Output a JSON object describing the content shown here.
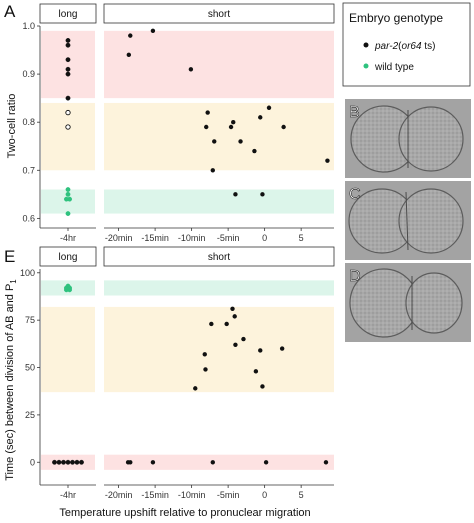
{
  "figure": {
    "panel_a_letter": "A",
    "panel_e_letter": "E",
    "x_axis_title": "Temperature upshift relative to pronuclear migration",
    "colors": {
      "par2": "#111111",
      "wildtype": "#2ec27e",
      "band_red": "#fde2e2",
      "band_yellow": "#fdf3dc",
      "band_green": "#dcf5ea"
    }
  },
  "legend": {
    "title": "Embryo genotype",
    "items": [
      {
        "pre": "par-2",
        "mid": "(",
        "allele": "or64",
        "post": " ts)",
        "color": "#111111"
      },
      {
        "pre": "wild type",
        "mid": "",
        "allele": "",
        "post": "",
        "color": "#2ec27e"
      }
    ]
  },
  "micrographs": [
    {
      "letter": "B",
      "icon": "two-cell-embryo-image"
    },
    {
      "letter": "C",
      "icon": "two-cell-embryo-image"
    },
    {
      "letter": "D",
      "icon": "two-cell-embryo-image"
    }
  ],
  "chart_data": [
    {
      "type": "scatter",
      "panel": "A",
      "ylabel": "Two-cell ratio",
      "ylim": [
        0.58,
        1.0
      ],
      "yticks": [
        0.6,
        0.7,
        0.8,
        0.9,
        1.0
      ],
      "ytick_labels": [
        "0.6",
        "0.7",
        "0.8",
        "0.9",
        "1.0"
      ],
      "bands": [
        {
          "from": 0.85,
          "to": 0.99,
          "color": "#fde2e2"
        },
        {
          "from": 0.7,
          "to": 0.84,
          "color": "#fdf3dc"
        },
        {
          "from": 0.61,
          "to": 0.66,
          "color": "#dcf5ea"
        }
      ],
      "facets": [
        {
          "strip": "long",
          "xticks": [
            "-4hr"
          ],
          "points": [
            {
              "x": "-4hr",
              "y": 0.97,
              "series": "par-2",
              "fill": "filled"
            },
            {
              "x": "-4hr",
              "y": 0.96,
              "series": "par-2",
              "fill": "filled"
            },
            {
              "x": "-4hr",
              "y": 0.93,
              "series": "par-2",
              "fill": "filled"
            },
            {
              "x": "-4hr",
              "y": 0.91,
              "series": "par-2",
              "fill": "filled"
            },
            {
              "x": "-4hr",
              "y": 0.9,
              "series": "par-2",
              "fill": "filled"
            },
            {
              "x": "-4hr",
              "y": 0.85,
              "series": "par-2",
              "fill": "filled"
            },
            {
              "x": "-4hr",
              "y": 0.82,
              "series": "par-2",
              "fill": "open"
            },
            {
              "x": "-4hr",
              "y": 0.79,
              "series": "par-2",
              "fill": "open"
            },
            {
              "x": "-4hr",
              "y": 0.66,
              "series": "wild type",
              "fill": "filled"
            },
            {
              "x": "-4hr",
              "y": 0.65,
              "series": "wild type",
              "fill": "filled"
            },
            {
              "x": "-4hr",
              "y": 0.64,
              "series": "wild type",
              "fill": "filled"
            },
            {
              "x": "-4hr",
              "y": 0.64,
              "series": "wild type",
              "fill": "filled"
            },
            {
              "x": "-4hr",
              "y": 0.61,
              "series": "wild type",
              "fill": "filled"
            }
          ]
        },
        {
          "strip": "short",
          "xlim": [
            -22,
            9.5
          ],
          "xticks": [
            -20,
            -15,
            -10,
            -5,
            0,
            5
          ],
          "xtick_labels": [
            "-20min",
            "-15min",
            "-10min",
            "-5min",
            "0",
            "5"
          ],
          "points": [
            {
              "x": -18.4,
              "y": 0.98
            },
            {
              "x": -18.6,
              "y": 0.94
            },
            {
              "x": -15.3,
              "y": 0.99
            },
            {
              "x": -10.1,
              "y": 0.91
            },
            {
              "x": -7.8,
              "y": 0.82
            },
            {
              "x": -8.0,
              "y": 0.79
            },
            {
              "x": -6.9,
              "y": 0.76
            },
            {
              "x": -7.1,
              "y": 0.7
            },
            {
              "x": -4.3,
              "y": 0.8
            },
            {
              "x": -4.6,
              "y": 0.79
            },
            {
              "x": -4.0,
              "y": 0.65
            },
            {
              "x": -3.3,
              "y": 0.76
            },
            {
              "x": -1.4,
              "y": 0.74
            },
            {
              "x": -0.6,
              "y": 0.81
            },
            {
              "x": -0.3,
              "y": 0.65
            },
            {
              "x": 0.6,
              "y": 0.83
            },
            {
              "x": 2.6,
              "y": 0.79
            },
            {
              "x": 8.6,
              "y": 0.72
            }
          ]
        }
      ]
    },
    {
      "type": "scatter",
      "panel": "E",
      "ylabel": "Time (sec) between division of AB and P",
      "ylabel_sub": "1",
      "ylim": [
        -12,
        102
      ],
      "yticks": [
        0,
        25,
        50,
        75,
        100
      ],
      "ytick_labels": [
        "0",
        "25",
        "50",
        "75",
        "100"
      ],
      "bands": [
        {
          "from": 88,
          "to": 96,
          "color": "#dcf5ea"
        },
        {
          "from": 37,
          "to": 82,
          "color": "#fdf3dc"
        },
        {
          "from": -4,
          "to": 4,
          "color": "#fde2e2"
        }
      ],
      "facets": [
        {
          "strip": "long",
          "xticks": [
            "-4hr"
          ],
          "points": [
            {
              "x": "-4hr",
              "y": 93,
              "series": "wild type"
            },
            {
              "x": "-4hr",
              "y": 92,
              "series": "wild type"
            },
            {
              "x": "-4hr",
              "y": 92,
              "series": "wild type"
            },
            {
              "x": "-4hr",
              "y": 91,
              "series": "wild type"
            },
            {
              "x": "-4hr",
              "y": 91,
              "series": "wild type"
            },
            {
              "x": "-4hr",
              "y": 0,
              "series": "par-2"
            },
            {
              "x": "-4hr",
              "y": 0,
              "series": "par-2"
            },
            {
              "x": "-4hr",
              "y": 0,
              "series": "par-2"
            },
            {
              "x": "-4hr",
              "y": 0,
              "series": "par-2"
            },
            {
              "x": "-4hr",
              "y": 0,
              "series": "par-2"
            },
            {
              "x": "-4hr",
              "y": 0,
              "series": "par-2"
            },
            {
              "x": "-4hr",
              "y": 0,
              "series": "par-2"
            }
          ]
        },
        {
          "strip": "short",
          "xlim": [
            -22,
            9.5
          ],
          "xticks": [
            -20,
            -15,
            -10,
            -5,
            0,
            5
          ],
          "xtick_labels": [
            "-20min",
            "-15min",
            "-10min",
            "-5min",
            "0",
            "5"
          ],
          "points": [
            {
              "x": -18.4,
              "y": 0
            },
            {
              "x": -18.7,
              "y": 0
            },
            {
              "x": -15.3,
              "y": 0
            },
            {
              "x": -7.1,
              "y": 0
            },
            {
              "x": 0.2,
              "y": 0
            },
            {
              "x": 8.4,
              "y": 0
            },
            {
              "x": -9.5,
              "y": 39
            },
            {
              "x": -8.1,
              "y": 49
            },
            {
              "x": -8.2,
              "y": 57
            },
            {
              "x": -7.3,
              "y": 73
            },
            {
              "x": -5.2,
              "y": 73
            },
            {
              "x": -4.4,
              "y": 81
            },
            {
              "x": -4.1,
              "y": 77
            },
            {
              "x": -4.0,
              "y": 62
            },
            {
              "x": -2.9,
              "y": 65
            },
            {
              "x": -1.2,
              "y": 48
            },
            {
              "x": -0.6,
              "y": 59
            },
            {
              "x": -0.3,
              "y": 40
            },
            {
              "x": 2.4,
              "y": 60
            }
          ]
        }
      ]
    }
  ]
}
